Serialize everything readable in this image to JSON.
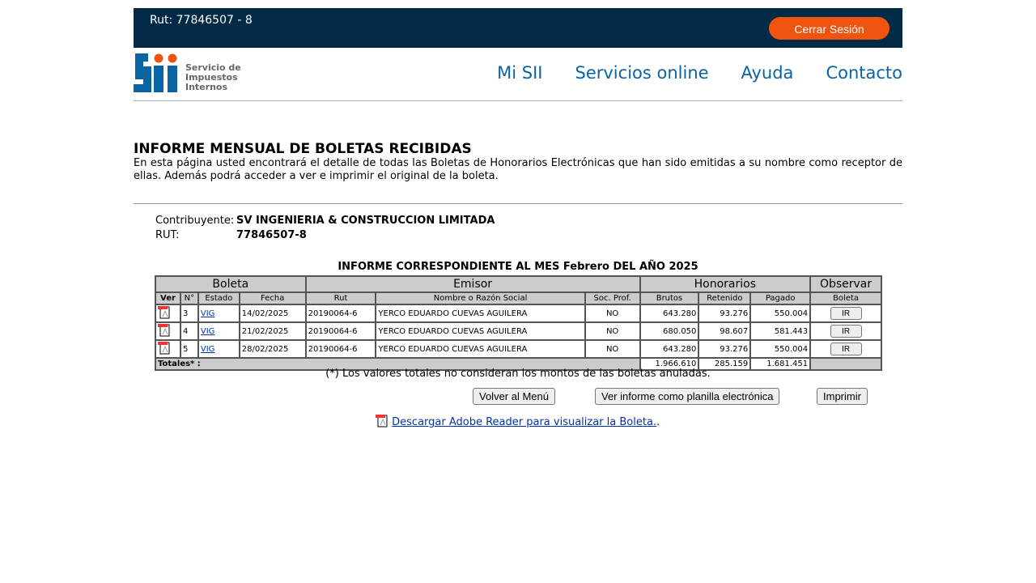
{
  "header": {
    "rut_label": "Rut: 77846507 - 8",
    "logout": "Cerrar Sesión",
    "logo_text": "Servicio de Impuestos Internos"
  },
  "nav": [
    "Mi SII",
    "Servicios online",
    "Ayuda",
    "Contacto"
  ],
  "page": {
    "title": "INFORME MENSUAL DE BOLETAS RECIBIDAS",
    "description": "En esta página usted encontrará el detalle de todas las Boletas de Honorarios Electrónicas que han sido emitidas a su nombre como receptor de ellas. Además podrá acceder a ver e imprimir el original de la boleta."
  },
  "taxpayer": {
    "name_label": "Contribuyente:",
    "name": "SV INGENIERIA & CONSTRUCCION LIMITADA",
    "rut_label": "RUT:",
    "rut": "77846507-8"
  },
  "report": {
    "title": "INFORME CORRESPONDIENTE AL MES Febrero DEL AÑO 2025",
    "groups": [
      "Boleta",
      "Emisor",
      "Honorarios",
      "Observar"
    ],
    "columns": [
      "Ver",
      "N°",
      "Estado",
      "Fecha",
      "Rut",
      "Nombre o Razón Social",
      "Soc. Prof.",
      "Brutos",
      "Retenido",
      "Pagado",
      "Boleta"
    ],
    "rows": [
      {
        "n": "3",
        "estado": "VIG",
        "fecha": "14/02/2025",
        "rut": "20190064-6",
        "nombre": "YERCO EDUARDO CUEVAS AGUILERA",
        "soc": "NO",
        "brutos": "643.280",
        "retenido": "93.276",
        "pagado": "550.004",
        "btn": "IR"
      },
      {
        "n": "4",
        "estado": "VIG",
        "fecha": "21/02/2025",
        "rut": "20190064-6",
        "nombre": "YERCO EDUARDO CUEVAS AGUILERA",
        "soc": "NO",
        "brutos": "680.050",
        "retenido": "98.607",
        "pagado": "581.443",
        "btn": "IR"
      },
      {
        "n": "5",
        "estado": "VIG",
        "fecha": "28/02/2025",
        "rut": "20190064-6",
        "nombre": "YERCO EDUARDO CUEVAS AGUILERA",
        "soc": "NO",
        "brutos": "643.280",
        "retenido": "93.276",
        "pagado": "550.004",
        "btn": "IR"
      }
    ],
    "totals": {
      "label": "Totales* :",
      "brutos": "1.966.610",
      "retenido": "285.159",
      "pagado": "1.681.451"
    },
    "note": "(*) Los valores totales no consideran los montos de las boletas anuladas."
  },
  "actions": {
    "back": "Volver al Menú",
    "spreadsheet": "Ver informe como planilla electrónica",
    "print": "Imprimir"
  },
  "download": {
    "link": "Descargar Adobe Reader para visualizar la Boleta.",
    "suffix": "."
  },
  "colors": {
    "topbar": "#002a45",
    "logout": "#ef530f",
    "nav": "#0a63a3"
  }
}
